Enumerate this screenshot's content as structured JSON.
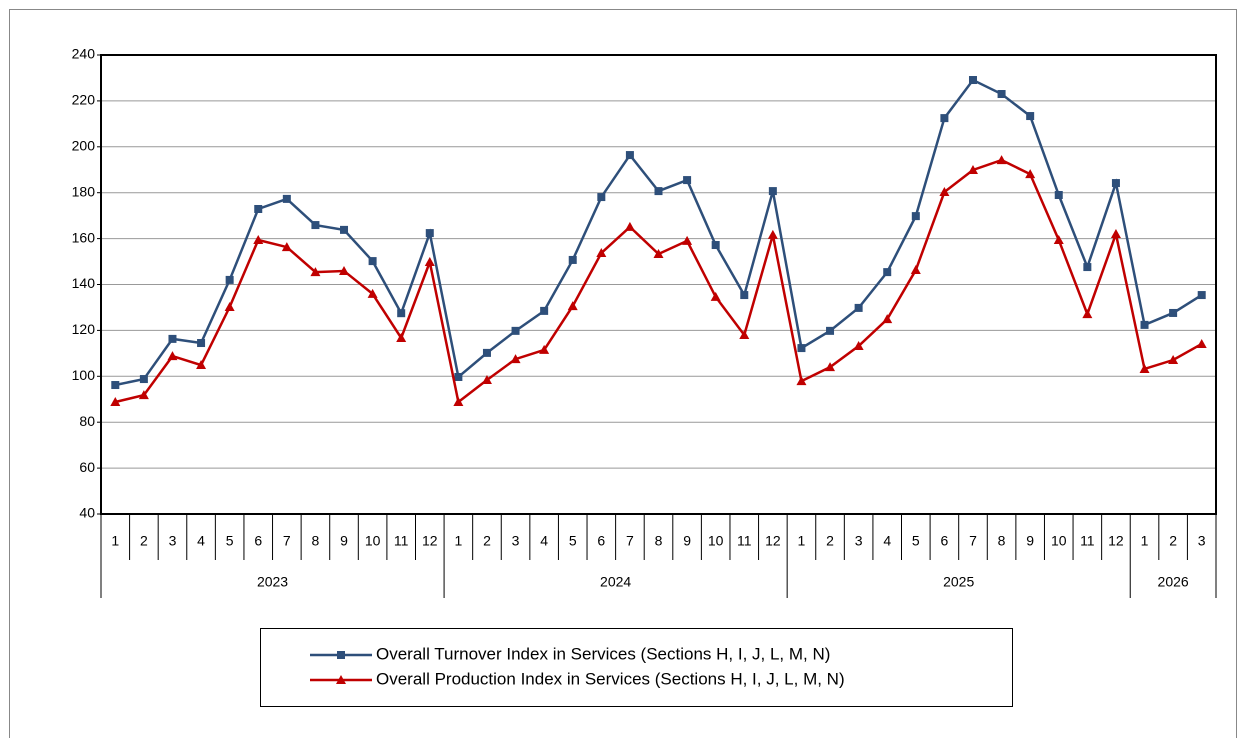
{
  "chart_data": {
    "type": "line",
    "categories": [
      "1",
      "2",
      "3",
      "4",
      "5",
      "6",
      "7",
      "8",
      "9",
      "10",
      "11",
      "12",
      "1",
      "2",
      "3",
      "4",
      "5",
      "6",
      "7",
      "8",
      "9",
      "10",
      "11",
      "12",
      "1",
      "2",
      "3",
      "4",
      "5",
      "6",
      "7",
      "8",
      "9",
      "10",
      "11",
      "12",
      "1",
      "2",
      "3"
    ],
    "group_labels": [
      "2023",
      "2024",
      "2025",
      "2026"
    ],
    "series": [
      {
        "name": "Overall Turnover Index in Services (Sections H, I, J, L, M, N)",
        "color": "#2e4f7a",
        "marker": "square",
        "values": [
          96.2,
          98.8,
          116.3,
          114.5,
          142,
          172.9,
          177.3,
          165.9,
          163.8,
          150.2,
          127.5,
          162.4,
          99.7,
          110.2,
          119.8,
          128.5,
          150.7,
          178.1,
          196.4,
          180.7,
          185.5,
          157.2,
          135.4,
          180.7,
          112.3,
          119.8,
          129.8,
          145.4,
          169.8,
          212.5,
          229.1,
          223,
          213.4,
          179,
          147.6,
          184.2,
          122.4,
          127.6,
          135.4
        ]
      },
      {
        "name": "Overall Production Index in Services (Sections H, I, J, L, M, N)",
        "color": "#c00000",
        "marker": "triangle",
        "values": [
          88.8,
          91.8,
          108.8,
          104.9,
          130.2,
          159.4,
          156.3,
          145.4,
          145.9,
          135.9,
          116.7,
          149.8,
          88.8,
          98.4,
          107.5,
          111.5,
          130.6,
          153.7,
          165.1,
          153.3,
          159,
          134.6,
          118,
          161.6,
          97.9,
          104,
          113.2,
          124.9,
          146.3,
          180.3,
          189.9,
          194.2,
          188.1,
          159.4,
          127.1,
          162,
          103.2,
          107.1,
          114.1
        ]
      }
    ],
    "ylim": [
      40,
      240
    ],
    "yticks": [
      40,
      60,
      80,
      100,
      120,
      140,
      160,
      180,
      200,
      220,
      240
    ],
    "grid": true
  }
}
